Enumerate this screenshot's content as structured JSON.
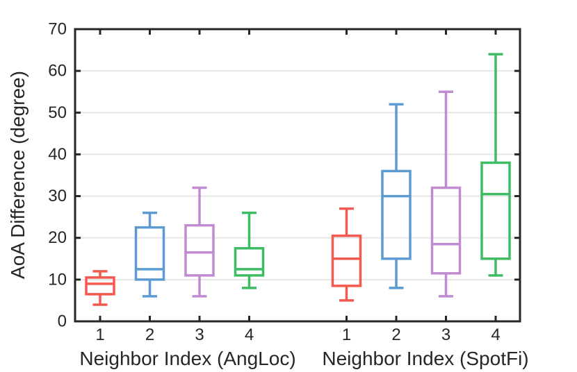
{
  "figure": {
    "background": "#ffffff",
    "axis_color": "#262626",
    "grid_color": "#e6e6e6"
  },
  "chart_data": {
    "type": "boxplot",
    "title": "",
    "ylabel": "AoA Difference (degree)",
    "ylim": [
      0,
      70
    ],
    "yticks": [
      0,
      10,
      20,
      30,
      40,
      50,
      60,
      70
    ],
    "grid": "horizontal",
    "legend": "none",
    "box_colors": [
      "#F4594F",
      "#5B9BD2",
      "#C08BD0",
      "#3EBC64"
    ],
    "groups": [
      {
        "label": "Neighbor Index (AngLoc)",
        "categories": [
          "1",
          "2",
          "3",
          "4"
        ],
        "boxes": [
          {
            "whisker_low": 4,
            "q1": 6.5,
            "median": 9,
            "q3": 10.5,
            "whisker_high": 12
          },
          {
            "whisker_low": 6,
            "q1": 10,
            "median": 12.5,
            "q3": 22.5,
            "whisker_high": 26
          },
          {
            "whisker_low": 6,
            "q1": 11,
            "median": 16.5,
            "q3": 23,
            "whisker_high": 32
          },
          {
            "whisker_low": 8,
            "q1": 11,
            "median": 12.5,
            "q3": 17.5,
            "whisker_high": 26
          }
        ]
      },
      {
        "label": "Neighbor Index (SpotFi)",
        "categories": [
          "1",
          "2",
          "3",
          "4"
        ],
        "boxes": [
          {
            "whisker_low": 5,
            "q1": 8.5,
            "median": 15,
            "q3": 20.5,
            "whisker_high": 27
          },
          {
            "whisker_low": 8,
            "q1": 15,
            "median": 30,
            "q3": 36,
            "whisker_high": 52
          },
          {
            "whisker_low": 6,
            "q1": 11.5,
            "median": 18.5,
            "q3": 32,
            "whisker_high": 55
          },
          {
            "whisker_low": 11,
            "q1": 15,
            "median": 30.5,
            "q3": 38,
            "whisker_high": 64
          }
        ]
      }
    ]
  }
}
